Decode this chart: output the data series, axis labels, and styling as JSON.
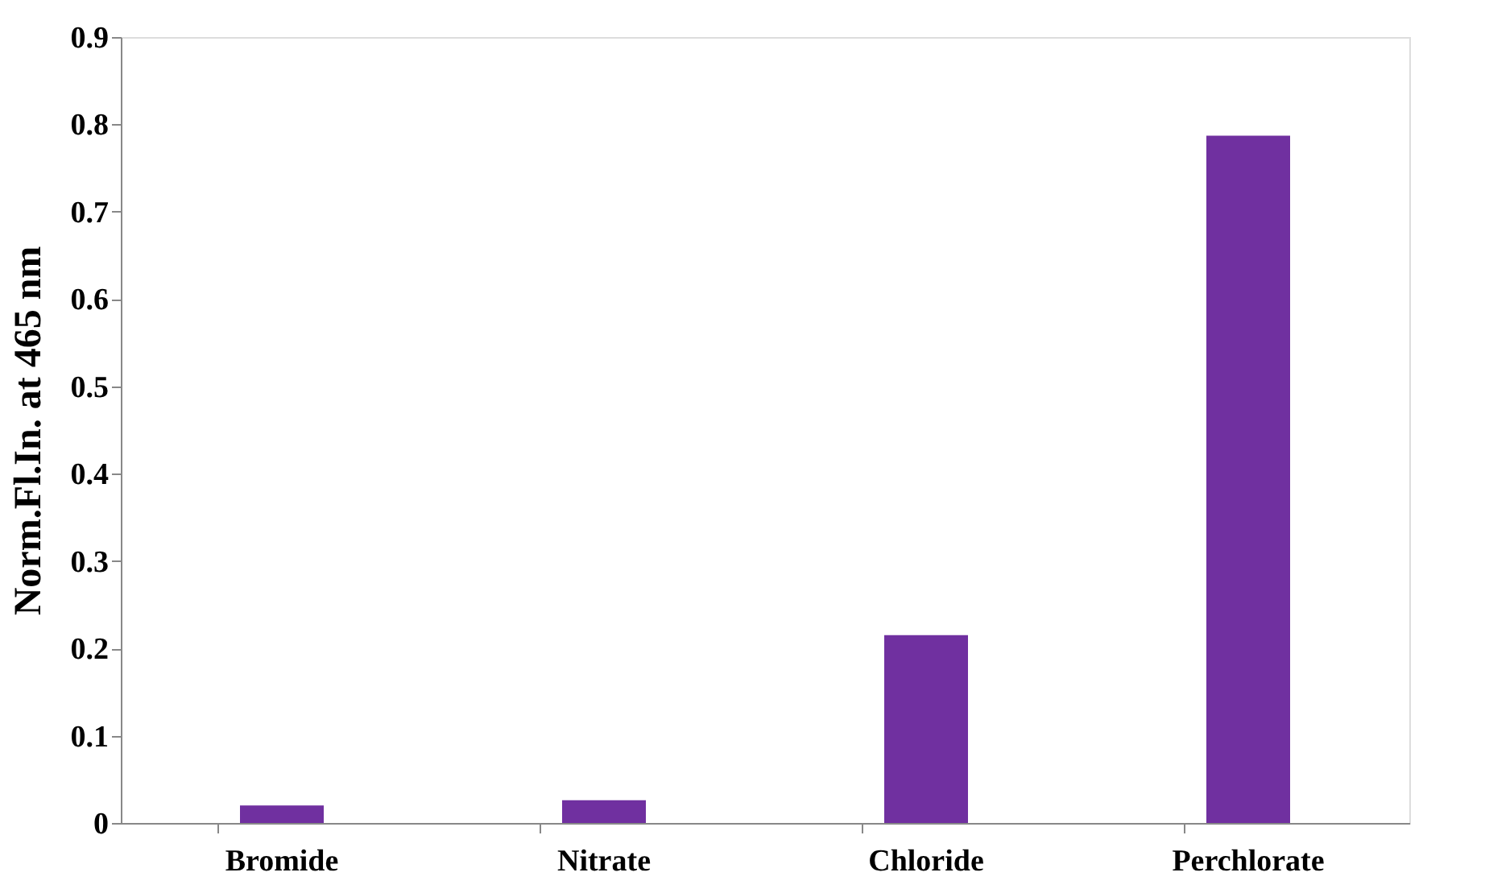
{
  "chart_data": {
    "type": "bar",
    "ylabel": "Norm.Fl.In. at 465 nm",
    "categories": [
      "Bromide",
      "Nitrate",
      "Chloride",
      "Perchlorate"
    ],
    "values": [
      0.02,
      0.026,
      0.215,
      0.787
    ],
    "color": "#7030a0",
    "ylim": [
      0,
      0.9
    ],
    "yticks": [
      0,
      0.1,
      0.2,
      0.3,
      0.4,
      0.5,
      0.6,
      0.7,
      0.8,
      0.9
    ],
    "grid": false
  }
}
